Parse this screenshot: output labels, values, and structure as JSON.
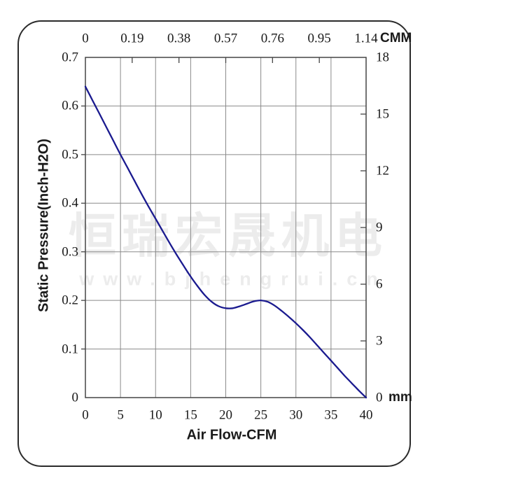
{
  "window": {
    "background": "#ffffff"
  },
  "units": {
    "top": "CMM",
    "right": "mm"
  },
  "axis_titles": {
    "y_left": "Static Pressure(Inch-H2O)",
    "x_bottom": "Air Flow-CFM"
  },
  "watermark": {
    "line1": "恒瑞宏晟机电",
    "line2": "www.bjhengrui.cn"
  },
  "colors": {
    "curve": "#1a1a8f",
    "grid": "#8a8a8a",
    "plot_border": "#454545",
    "tick": "#454545",
    "text": "#1a1a1a",
    "watermark": "#ececec",
    "frame": "#2b2b2b"
  },
  "chart_data": {
    "type": "line",
    "title": "",
    "grid": true,
    "legend": null,
    "x_bottom_axis": {
      "title": "Air Flow-CFM",
      "unit": "CFM",
      "range": [
        0,
        40
      ],
      "ticks": [
        "0",
        "5",
        "10",
        "15",
        "20",
        "25",
        "30",
        "35",
        "40"
      ]
    },
    "x_top_axis": {
      "title": "CMM",
      "unit": "CMM",
      "range": [
        0,
        1.14
      ],
      "ticks": [
        "0",
        "0.19",
        "0.38",
        "0.57",
        "0.76",
        "0.95",
        "1.14"
      ]
    },
    "y_left_axis": {
      "title": "Static Pressure(Inch-H2O)",
      "unit": "Inch-H2O",
      "range": [
        0,
        0.7
      ],
      "ticks": [
        "0.7",
        "0.6",
        "0.5",
        "0.4",
        "0.3",
        "0.2",
        "0.1",
        "0"
      ]
    },
    "y_right_axis": {
      "title": "mm",
      "unit": "mm",
      "range": [
        0,
        18
      ],
      "ticks": [
        "18",
        "15",
        "12",
        "9",
        "6",
        "3",
        "0"
      ]
    },
    "series": [
      {
        "name": "static-pressure-vs-airflow",
        "color": "#1a1a8f",
        "x_unit": "CFM",
        "y_unit": "Inch-H2O",
        "points": [
          [
            0,
            0.64
          ],
          [
            1,
            0.612
          ],
          [
            2,
            0.584
          ],
          [
            3,
            0.556
          ],
          [
            4,
            0.528
          ],
          [
            5,
            0.5
          ],
          [
            6,
            0.473
          ],
          [
            7,
            0.446
          ],
          [
            8,
            0.419
          ],
          [
            9,
            0.393
          ],
          [
            10,
            0.368
          ],
          [
            11,
            0.343
          ],
          [
            12,
            0.318
          ],
          [
            13,
            0.294
          ],
          [
            14,
            0.271
          ],
          [
            15,
            0.249
          ],
          [
            16,
            0.229
          ],
          [
            17,
            0.211
          ],
          [
            18,
            0.197
          ],
          [
            19,
            0.188
          ],
          [
            20,
            0.184
          ],
          [
            21,
            0.184
          ],
          [
            22,
            0.188
          ],
          [
            23,
            0.193
          ],
          [
            24,
            0.198
          ],
          [
            25,
            0.2
          ],
          [
            26,
            0.197
          ],
          [
            27,
            0.189
          ],
          [
            28,
            0.178
          ],
          [
            29,
            0.166
          ],
          [
            30,
            0.153
          ],
          [
            31,
            0.139
          ],
          [
            32,
            0.124
          ],
          [
            33,
            0.108
          ],
          [
            34,
            0.092
          ],
          [
            35,
            0.076
          ],
          [
            36,
            0.06
          ],
          [
            37,
            0.044
          ],
          [
            38,
            0.029
          ],
          [
            39,
            0.014
          ],
          [
            40,
            0.0
          ]
        ]
      }
    ]
  }
}
